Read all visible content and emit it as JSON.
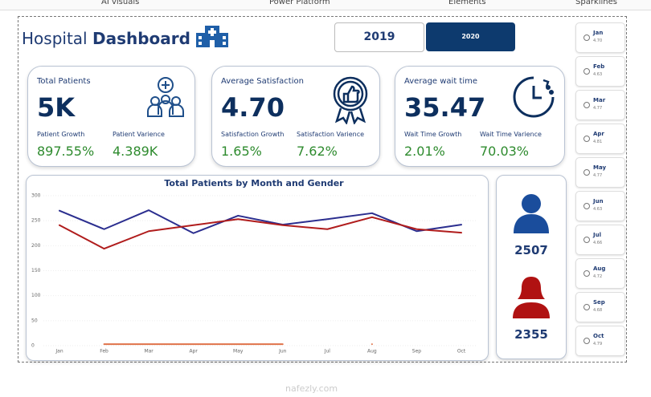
{
  "tabs": [
    "AI visuals",
    "Power Platform",
    "Elements",
    "Sparklines"
  ],
  "header": {
    "title_light": "Hospital",
    "title_bold": "Dashboard",
    "years": [
      "2019",
      "2020"
    ]
  },
  "kpis": [
    {
      "title": "Total Patients",
      "value": "5K",
      "labels": [
        "Patient Growth",
        "Patient Varience"
      ],
      "values": [
        "897.55%",
        "4.389K"
      ]
    },
    {
      "title": "Average Satisfaction",
      "value": "4.70",
      "labels": [
        "Satisfaction Growth",
        "Satisfaction Varience"
      ],
      "values": [
        "1.65%",
        "7.62%"
      ]
    },
    {
      "title": "Average wait time",
      "value": "35.47",
      "labels": [
        "Wait Time Growth",
        "Wait Time Varience"
      ],
      "values": [
        "2.01%",
        "70.03%"
      ]
    }
  ],
  "chart_data": {
    "type": "line",
    "title": "Total Patients by Month and Gender",
    "categories": [
      "Jan",
      "Feb",
      "Mar",
      "Apr",
      "May",
      "Jun",
      "Jul",
      "Aug",
      "Sep",
      "Oct"
    ],
    "series": [
      {
        "color": "#2b2e8f",
        "values": [
          270,
          233,
          271,
          225,
          260,
          242,
          253,
          265,
          229,
          242
        ]
      },
      {
        "color": "#b01c1c",
        "values": [
          241,
          194,
          229,
          241,
          253,
          241,
          233,
          257,
          233,
          226
        ]
      },
      {
        "color": "#e0734a",
        "values": [
          null,
          3,
          3,
          3,
          3,
          3,
          null,
          3,
          null,
          null
        ]
      }
    ],
    "ylim": [
      0,
      300
    ],
    "yticks": [
      0,
      50,
      100,
      150,
      200,
      250,
      300
    ],
    "grid": true
  },
  "gender": {
    "male": "2507",
    "female": "2355"
  },
  "months": [
    {
      "name": "Jan",
      "value": "4.70"
    },
    {
      "name": "Feb",
      "value": "4.63"
    },
    {
      "name": "Mar",
      "value": "4.77"
    },
    {
      "name": "Apr",
      "value": "4.81"
    },
    {
      "name": "May",
      "value": "4.77"
    },
    {
      "name": "Jun",
      "value": "4.63"
    },
    {
      "name": "Jul",
      "value": "4.66"
    },
    {
      "name": "Aug",
      "value": "4.72"
    },
    {
      "name": "Sep",
      "value": "4.68"
    },
    {
      "name": "Oct",
      "value": "4.79"
    }
  ],
  "watermark": "nafezly.com"
}
